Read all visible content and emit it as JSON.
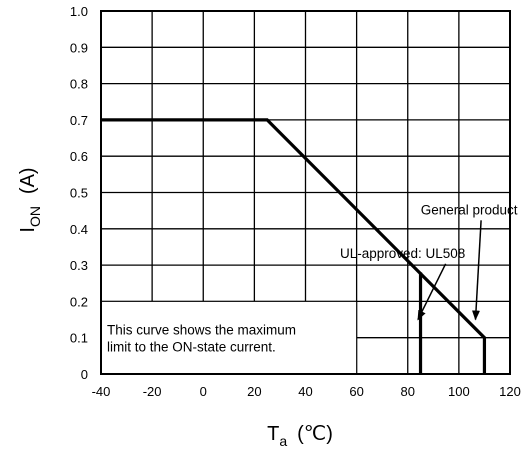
{
  "chart_data": {
    "type": "line",
    "title": "",
    "xlabel": {
      "main": "T",
      "sub": "a",
      "unit": "(℃)"
    },
    "ylabel": {
      "main": "I",
      "sub": "ON",
      "unit": "(A)"
    },
    "xlim": [
      -40,
      120
    ],
    "ylim": [
      0,
      1.0
    ],
    "x_ticks": [
      "-40",
      "-20",
      "0",
      "20",
      "40",
      "60",
      "80",
      "100",
      "120"
    ],
    "y_ticks": [
      "0",
      "0.1",
      "0.2",
      "0.3",
      "0.4",
      "0.5",
      "0.6",
      "0.7",
      "0.8",
      "0.9",
      "1.0"
    ],
    "grid": true,
    "series": [
      {
        "points": [
          [
            -40,
            0.7
          ],
          [
            25,
            0.7
          ],
          [
            110,
            0.1
          ],
          [
            110,
            0
          ]
        ]
      },
      {
        "points": [
          [
            85,
            0.28
          ],
          [
            85,
            0
          ]
        ]
      }
    ],
    "annotations": [
      {
        "text": "General product",
        "anchor": [
          104,
          0.44
        ],
        "arrow_to": [
          106.5,
          0.15
        ]
      },
      {
        "text": "UL-approved: UL508",
        "anchor": [
          78,
          0.32
        ],
        "arrow_to": [
          84,
          0.15
        ]
      }
    ],
    "note": {
      "lines": [
        "This curve shows the maximum",
        "limit to the ON-state current."
      ]
    }
  }
}
